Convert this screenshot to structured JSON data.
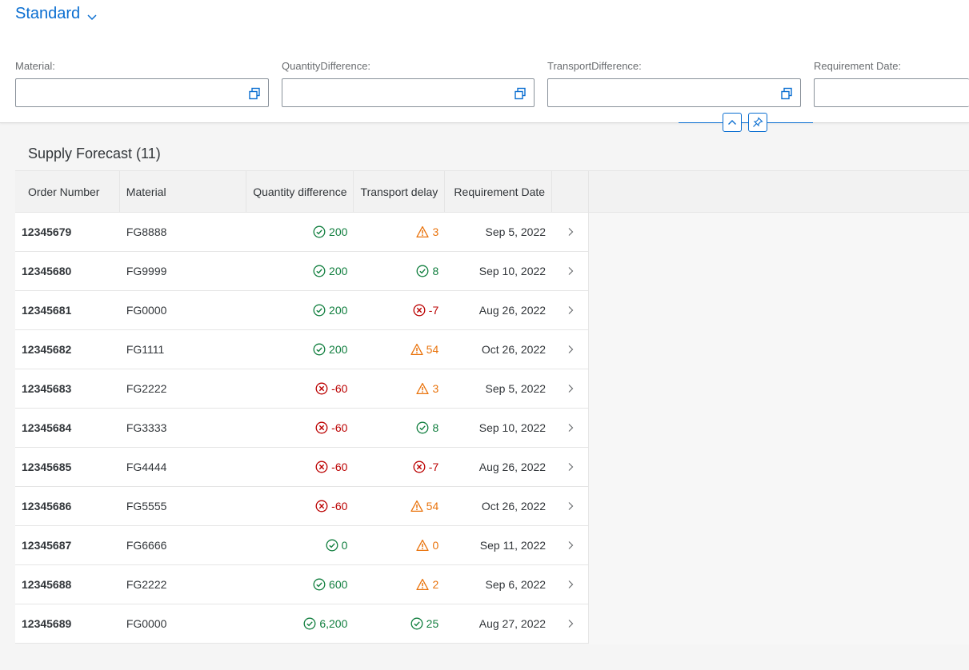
{
  "header": {
    "variant_title": "Standard"
  },
  "filters": [
    {
      "label": "Material:",
      "value": ""
    },
    {
      "label": "QuantityDifference:",
      "value": ""
    },
    {
      "label": "TransportDifference:",
      "value": ""
    },
    {
      "label": "Requirement Date:",
      "value": ""
    }
  ],
  "table": {
    "title": "Supply Forecast (11)",
    "columns": [
      "Order Number",
      "Material",
      "Quantity difference",
      "Transport delay",
      "Requirement Date"
    ],
    "rows": [
      {
        "order": "12345679",
        "material": "FG8888",
        "qty": "200",
        "qty_status": "success",
        "delay": "3",
        "delay_status": "warning",
        "date": "Sep 5, 2022"
      },
      {
        "order": "12345680",
        "material": "FG9999",
        "qty": "200",
        "qty_status": "success",
        "delay": "8",
        "delay_status": "success",
        "date": "Sep 10, 2022"
      },
      {
        "order": "12345681",
        "material": "FG0000",
        "qty": "200",
        "qty_status": "success",
        "delay": "-7",
        "delay_status": "error",
        "date": "Aug 26, 2022"
      },
      {
        "order": "12345682",
        "material": "FG1111",
        "qty": "200",
        "qty_status": "success",
        "delay": "54",
        "delay_status": "warning",
        "date": "Oct 26, 2022"
      },
      {
        "order": "12345683",
        "material": "FG2222",
        "qty": "-60",
        "qty_status": "error",
        "delay": "3",
        "delay_status": "warning",
        "date": "Sep 5, 2022"
      },
      {
        "order": "12345684",
        "material": "FG3333",
        "qty": "-60",
        "qty_status": "error",
        "delay": "8",
        "delay_status": "success",
        "date": "Sep 10, 2022"
      },
      {
        "order": "12345685",
        "material": "FG4444",
        "qty": "-60",
        "qty_status": "error",
        "delay": "-7",
        "delay_status": "error",
        "date": "Aug 26, 2022"
      },
      {
        "order": "12345686",
        "material": "FG5555",
        "qty": "-60",
        "qty_status": "error",
        "delay": "54",
        "delay_status": "warning",
        "date": "Oct 26, 2022"
      },
      {
        "order": "12345687",
        "material": "FG6666",
        "qty": "0",
        "qty_status": "success",
        "delay": "0",
        "delay_status": "warning",
        "date": "Sep 11, 2022"
      },
      {
        "order": "12345688",
        "material": "FG2222",
        "qty": "600",
        "qty_status": "success",
        "delay": "2",
        "delay_status": "warning",
        "date": "Sep 6, 2022"
      },
      {
        "order": "12345689",
        "material": "FG0000",
        "qty": "6,200",
        "qty_status": "success",
        "delay": "25",
        "delay_status": "success",
        "date": "Aug 27, 2022"
      }
    ]
  },
  "colors": {
    "accent": "#0a6ed1",
    "success": "#107e3e",
    "error": "#bb0000",
    "warning": "#e9730c"
  },
  "icons": {
    "variant": "chevron-down-icon",
    "value_help": "value-help-icon",
    "collapse": "chevron-up-icon",
    "pin": "pin-icon",
    "success": "check-circle-icon",
    "error": "error-circle-icon",
    "warning": "warning-triangle-icon",
    "navigation": "chevron-right-icon"
  }
}
